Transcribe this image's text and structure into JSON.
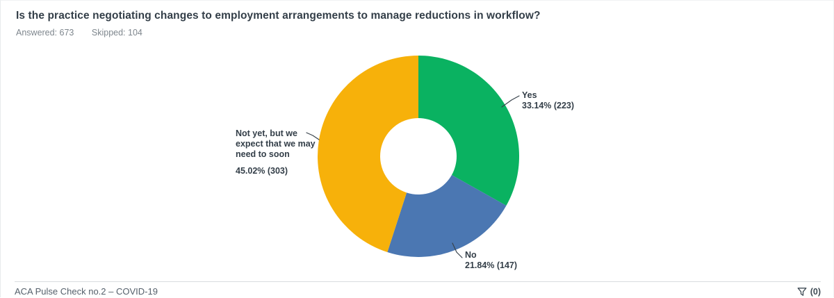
{
  "header": {
    "title": "Is the practice negotiating changes to employment arrangements to manage reductions in workflow?",
    "answered_label": "Answered: 673",
    "skipped_label": "Skipped: 104"
  },
  "chart_data": {
    "type": "pie",
    "subtype": "donut",
    "title": "Is the practice negotiating changes to employment arrangements to manage reductions in workflow?",
    "categories": [
      "Yes",
      "No",
      "Not yet, but we expect that we may need to soon"
    ],
    "values": [
      33.14,
      21.84,
      45.02
    ],
    "counts": [
      223,
      147,
      303
    ],
    "total_answered": 673,
    "total_skipped": 104,
    "colors": [
      "#0AB261",
      "#4B77B2",
      "#F7B10A"
    ],
    "start_angle_deg": 0,
    "direction": "clockwise",
    "legend_position": "none",
    "labels": {
      "yes": {
        "name": "Yes",
        "value_text": "33.14% (223)"
      },
      "no": {
        "name": "No",
        "value_text": "21.84% (147)"
      },
      "not_yet": {
        "name_lines": "Not yet, but we\nexpect that we may\nneed to soon",
        "value_text": "45.02% (303)"
      }
    }
  },
  "footer": {
    "source_label": "ACA Pulse Check no.2 – COVID-19",
    "filter_icon": "funnel-icon",
    "filter_count_label": "(0)"
  }
}
